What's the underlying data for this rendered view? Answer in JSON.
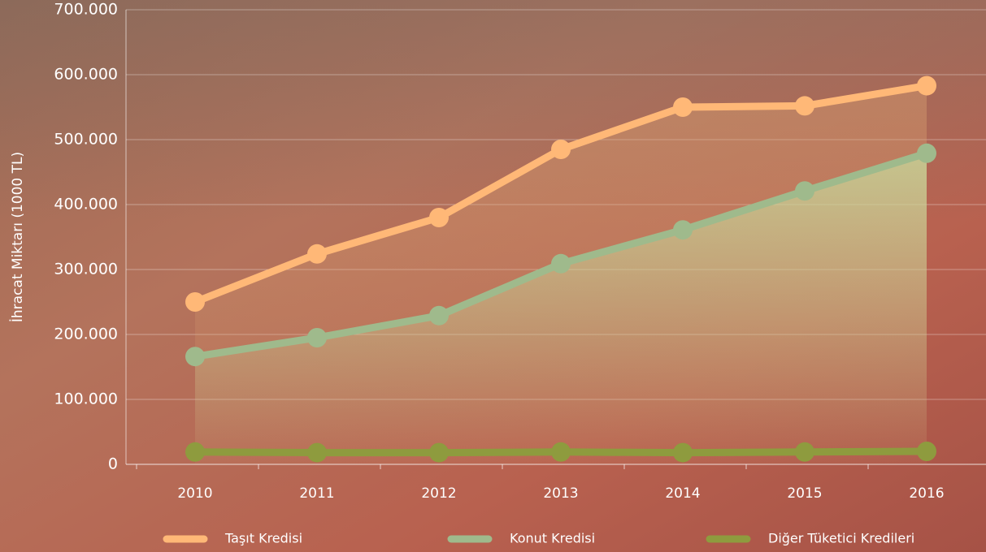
{
  "chart_data": {
    "type": "line",
    "y_label": "İhracat Miktarı (1000 TL)",
    "categories": [
      "2010",
      "2011",
      "2012",
      "2013",
      "2014",
      "2015",
      "2016"
    ],
    "series": [
      {
        "name": "Taşıt Kredisi",
        "color": "#ffb877",
        "values": [
          250000,
          324000,
          380000,
          485000,
          550000,
          552000,
          583000
        ]
      },
      {
        "name": "Konut Kredisi",
        "color": "#9fba8c",
        "values": [
          166000,
          195000,
          229000,
          309000,
          361000,
          421000,
          479000
        ]
      },
      {
        "name": "Diğer Tüketici Kredileri",
        "color": "#8e9b3e",
        "values": [
          19000,
          18000,
          18000,
          19000,
          18000,
          19000,
          20000
        ]
      }
    ],
    "ylim": [
      0,
      700000
    ],
    "yticks": [
      0,
      {
        "value": 100000,
        "label": "100.000"
      },
      {
        "value": 200000,
        "label": "200.000"
      },
      {
        "value": 300000,
        "label": "300.000"
      },
      {
        "value": 400000,
        "label": "400.000"
      },
      {
        "value": 500000,
        "label": "500.000"
      },
      {
        "value": 600000,
        "label": "600.000"
      },
      {
        "value": 700000,
        "label": "700.000"
      }
    ],
    "grid": true
  }
}
